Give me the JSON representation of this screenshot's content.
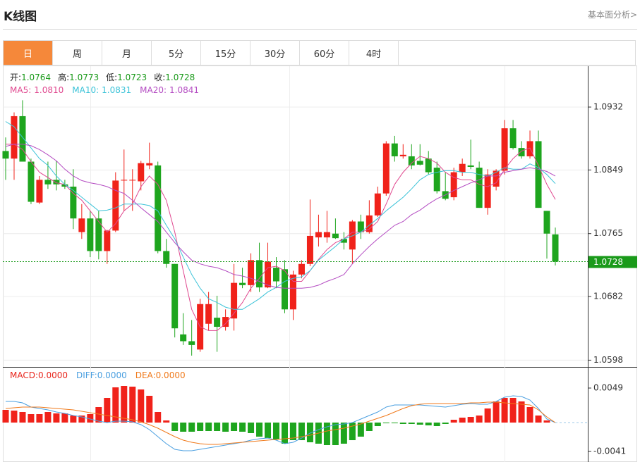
{
  "header": {
    "title": "K线图",
    "link": "基本面分析>"
  },
  "tabs": [
    "日",
    "周",
    "月",
    "5分",
    "15分",
    "30分",
    "60分",
    "4时"
  ],
  "active_tab": 0,
  "chart_data": [
    {
      "type": "candlestick",
      "separator": ":",
      "ohlc_labels": [
        "开",
        "高",
        "低",
        "收"
      ],
      "up_color": "#f0221a",
      "down_color": "#1ea51e",
      "readout_color": "#1a9a1a",
      "open": [
        1.0874,
        1.0864,
        1.092,
        1.086,
        1.0806,
        1.0836,
        1.0836,
        1.083,
        1.0827,
        1.0767,
        1.0785,
        1.0785,
        1.0742,
        1.0769,
        1.0835,
        1.0835,
        1.0834,
        1.0855,
        1.0855,
        1.0742,
        1.0725,
        1.0632,
        1.0623,
        1.0612,
        1.0646,
        1.0654,
        1.0642,
        1.0653,
        1.07,
        1.0697,
        1.073,
        1.0694,
        1.072,
        1.0718,
        1.0665,
        1.0711,
        1.0725,
        1.076,
        1.076,
        1.0765,
        1.0758,
        1.0744,
        1.0781,
        1.0767,
        1.0789,
        1.0818,
        1.0884,
        1.0867,
        1.0867,
        1.0861,
        1.0864,
        1.0852,
        1.0821,
        1.0813,
        1.0846,
        1.0855,
        1.0852,
        1.0799,
        1.0827,
        1.0848,
        1.0904,
        1.0878,
        1.0867,
        1.0887,
        1.0795,
        1.0764
      ],
      "high": [
        1.0892,
        1.0925,
        1.0941,
        1.0864,
        1.0841,
        1.086,
        1.0861,
        1.0836,
        1.085,
        1.0804,
        1.0795,
        1.0795,
        1.077,
        1.0846,
        1.0876,
        1.085,
        1.0861,
        1.0885,
        1.086,
        1.0758,
        1.0725,
        1.066,
        1.0651,
        1.0679,
        1.0688,
        1.0683,
        1.0665,
        1.0725,
        1.072,
        1.0739,
        1.0753,
        1.0753,
        1.0734,
        1.073,
        1.0716,
        1.073,
        1.081,
        1.079,
        1.0795,
        1.0785,
        1.0767,
        1.0783,
        1.079,
        1.0809,
        1.0827,
        1.0887,
        1.0894,
        1.0883,
        1.0883,
        1.0883,
        1.0874,
        1.086,
        1.0846,
        1.0852,
        1.0864,
        1.0889,
        1.086,
        1.085,
        1.085,
        1.0915,
        1.0915,
        1.0887,
        1.0901,
        1.0901,
        1.0795,
        1.0773
      ],
      "low": [
        1.0836,
        1.0836,
        1.086,
        1.0804,
        1.0804,
        1.0824,
        1.0822,
        1.0824,
        1.0771,
        1.0758,
        1.0734,
        1.0731,
        1.0725,
        1.0767,
        1.0795,
        1.0795,
        1.0822,
        1.085,
        1.0739,
        1.072,
        1.0628,
        1.0618,
        1.0604,
        1.0609,
        1.0637,
        1.0609,
        1.0637,
        1.0637,
        1.0693,
        1.0688,
        1.0688,
        1.0693,
        1.0693,
        1.066,
        1.0651,
        1.0706,
        1.0722,
        1.0748,
        1.0753,
        1.0758,
        1.0744,
        1.0725,
        1.0758,
        1.0765,
        1.0787,
        1.0815,
        1.086,
        1.0864,
        1.085,
        1.0855,
        1.0843,
        1.0818,
        1.0809,
        1.0809,
        1.0841,
        1.085,
        1.0799,
        1.079,
        1.0822,
        1.0843,
        1.0876,
        1.0864,
        1.0864,
        1.0799,
        1.0732,
        1.0723
      ],
      "close": [
        1.0864,
        1.092,
        1.086,
        1.0807,
        1.0836,
        1.083,
        1.083,
        1.0827,
        1.0785,
        1.0785,
        1.0742,
        1.0742,
        1.0769,
        1.0835,
        1.0836,
        1.0836,
        1.0858,
        1.0858,
        1.0742,
        1.0725,
        1.064,
        1.0623,
        1.0618,
        1.0672,
        1.0672,
        1.0642,
        1.0655,
        1.07,
        1.0697,
        1.073,
        1.0694,
        1.0728,
        1.0702,
        1.0665,
        1.0711,
        1.0725,
        1.0762,
        1.0767,
        1.0767,
        1.0759,
        1.0753,
        1.0781,
        1.0767,
        1.0789,
        1.0818,
        1.0884,
        1.0867,
        1.0869,
        1.0855,
        1.0856,
        1.0846,
        1.0821,
        1.0811,
        1.0846,
        1.0857,
        1.0853,
        1.0799,
        1.0843,
        1.0848,
        1.0904,
        1.0878,
        1.0867,
        1.0887,
        1.0799,
        1.0765,
        1.0728
      ],
      "ylim": [
        1.059,
        1.0985
      ],
      "yticks": [
        1.0932,
        1.0849,
        1.0765,
        1.0682,
        1.0598
      ],
      "grid": true,
      "series": [
        {
          "name": "MA5",
          "color": "#e0488f",
          "readout": "1.0810",
          "values": [
            1.0883,
            1.0883,
            1.0876,
            1.086,
            1.0846,
            1.0839,
            1.0832,
            1.083,
            1.0818,
            1.0809,
            1.0795,
            1.0781,
            1.0767,
            1.0778,
            1.0795,
            1.0804,
            1.0827,
            1.0841,
            1.083,
            1.0809,
            1.0767,
            1.0716,
            1.0665,
            1.0642,
            1.0637,
            1.0637,
            1.0646,
            1.066,
            1.0674,
            1.0693,
            1.0706,
            1.072,
            1.0722,
            1.0716,
            1.0702,
            1.0702,
            1.0716,
            1.0731,
            1.0744,
            1.0753,
            1.0758,
            1.0767,
            1.0767,
            1.0771,
            1.0781,
            1.0804,
            1.083,
            1.0846,
            1.0858,
            1.0867,
            1.0864,
            1.0858,
            1.0846,
            1.0839,
            1.0836,
            1.0836,
            1.083,
            1.0827,
            1.0832,
            1.085,
            1.0864,
            1.0874,
            1.0878,
            1.0855,
            1.083,
            1.081
          ]
        },
        {
          "name": "MA10",
          "color": "#3cc3d8",
          "readout": "1.0831",
          "values": [
            1.0913,
            1.0906,
            1.0892,
            1.0878,
            1.0864,
            1.0855,
            1.0841,
            1.083,
            1.0822,
            1.0813,
            1.0804,
            1.0795,
            1.0796,
            1.0799,
            1.0804,
            1.0804,
            1.0804,
            1.0802,
            1.0795,
            1.0776,
            1.0758,
            1.0734,
            1.0711,
            1.0693,
            1.0679,
            1.0674,
            1.0668,
            1.0665,
            1.0665,
            1.0672,
            1.0679,
            1.0688,
            1.0694,
            1.0702,
            1.0706,
            1.0708,
            1.0716,
            1.073,
            1.0739,
            1.0748,
            1.0758,
            1.0762,
            1.0767,
            1.0776,
            1.0785,
            1.0795,
            1.0804,
            1.0813,
            1.0824,
            1.0836,
            1.0843,
            1.0846,
            1.0848,
            1.0848,
            1.0846,
            1.0846,
            1.0843,
            1.0841,
            1.0846,
            1.0852,
            1.085,
            1.085,
            1.0857,
            1.0852,
            1.0843,
            1.0831
          ]
        },
        {
          "name": "MA20",
          "color": "#b44cc2",
          "readout": "1.0841",
          "values": [
            1.088,
            1.0883,
            1.0883,
            1.0881,
            1.0876,
            1.0869,
            1.0861,
            1.085,
            1.0841,
            1.0835,
            1.0832,
            1.083,
            1.0827,
            1.0822,
            1.0818,
            1.0809,
            1.0799,
            1.079,
            1.0781,
            1.0767,
            1.0753,
            1.0741,
            1.073,
            1.0725,
            1.0722,
            1.072,
            1.0716,
            1.0711,
            1.0709,
            1.0706,
            1.0702,
            1.0697,
            1.0694,
            1.0693,
            1.0693,
            1.0693,
            1.0694,
            1.0697,
            1.0702,
            1.0706,
            1.0711,
            1.0725,
            1.0737,
            1.0748,
            1.0758,
            1.0767,
            1.0776,
            1.0781,
            1.079,
            1.0796,
            1.0804,
            1.0811,
            1.0816,
            1.0822,
            1.0827,
            1.0832,
            1.0836,
            1.0841,
            1.0841,
            1.0846,
            1.0848,
            1.085,
            1.0852,
            1.085,
            1.0847,
            1.0841
          ]
        }
      ]
    },
    {
      "type": "macd",
      "separator": ":",
      "up_color": "#f0221a",
      "down_color": "#1ea51e",
      "ylim": [
        -0.0055,
        0.0078
      ],
      "yticks": [
        0.0049,
        -0.0041
      ],
      "grid": false,
      "series": [
        {
          "name": "MACD",
          "color": "#e8251c",
          "readout": "0.0000",
          "values": [
            0.0018,
            0.0017,
            0.0015,
            0.0012,
            0.0012,
            0.0015,
            0.0013,
            0.0013,
            0.001,
            0.001,
            0.0012,
            0.0022,
            0.0035,
            0.005,
            0.0052,
            0.0051,
            0.0047,
            0.0038,
            0.0015,
            0.0003,
            -0.0012,
            -0.0013,
            -0.0013,
            -0.0012,
            -0.0012,
            -0.0012,
            -0.0013,
            -0.0012,
            -0.0013,
            -0.0015,
            -0.002,
            -0.0022,
            -0.0024,
            -0.003,
            -0.0025,
            -0.0025,
            -0.0028,
            -0.003,
            -0.0032,
            -0.0032,
            -0.003,
            -0.0025,
            -0.002,
            -0.0012,
            -0.0005,
            -0.0001,
            -0.0001,
            -0.0002,
            -0.0002,
            -0.0003,
            -0.0004,
            -0.0005,
            -0.0002,
            0.0004,
            0.0007,
            0.0008,
            0.001,
            0.002,
            0.003,
            0.0035,
            0.0035,
            0.003,
            0.0022,
            0.001,
            0.0003,
            0
          ]
        },
        {
          "name": "DIFF",
          "color": "#4a9fe0",
          "readout": "0.0000",
          "values": [
            0.003,
            0.003,
            0.0028,
            0.0022,
            0.002,
            0.0018,
            0.0015,
            0.0013,
            0.001,
            0.0008,
            0.0005,
            0.0002,
            0,
            0.0002,
            0.0002,
            0.0001,
            -0.0003,
            -0.001,
            -0.002,
            -0.003,
            -0.0038,
            -0.004,
            -0.004,
            -0.0038,
            -0.0036,
            -0.0034,
            -0.0032,
            -0.003,
            -0.0028,
            -0.0025,
            -0.0023,
            -0.0022,
            -0.0025,
            -0.003,
            -0.0028,
            -0.0022,
            -0.0015,
            -0.001,
            -0.0006,
            -0.0003,
            -0.0002,
            0,
            0.0005,
            0.001,
            0.0015,
            0.0022,
            0.0025,
            0.0025,
            0.0025,
            0.0025,
            0.0024,
            0.0023,
            0.0022,
            0.0024,
            0.0026,
            0.0027,
            0.0026,
            0.0026,
            0.003,
            0.0036,
            0.0038,
            0.0037,
            0.0032,
            0.002,
            0.0005,
            0
          ]
        },
        {
          "name": "DEA",
          "color": "#f07a1c",
          "readout": "0.0000",
          "values": [
            0.002,
            0.0021,
            0.0022,
            0.0022,
            0.0022,
            0.0021,
            0.002,
            0.0019,
            0.0018,
            0.0016,
            0.0014,
            0.0012,
            0.001,
            0.0008,
            0.0006,
            0.0004,
            0.0001,
            -0.0003,
            -0.0008,
            -0.0014,
            -0.002,
            -0.0025,
            -0.0028,
            -0.003,
            -0.0031,
            -0.0031,
            -0.003,
            -0.0029,
            -0.0028,
            -0.0027,
            -0.0026,
            -0.0025,
            -0.0024,
            -0.0023,
            -0.0022,
            -0.002,
            -0.0018,
            -0.0015,
            -0.0012,
            -0.001,
            -0.0008,
            -0.0005,
            -0.0002,
            0.0002,
            0.0006,
            0.001,
            0.0015,
            0.002,
            0.0024,
            0.0026,
            0.0027,
            0.0027,
            0.0027,
            0.0027,
            0.0027,
            0.0028,
            0.0028,
            0.0029,
            0.0029,
            0.0028,
            0.0027,
            0.0026,
            0.0025,
            0.0018,
            0.0008,
            0
          ]
        }
      ]
    }
  ]
}
